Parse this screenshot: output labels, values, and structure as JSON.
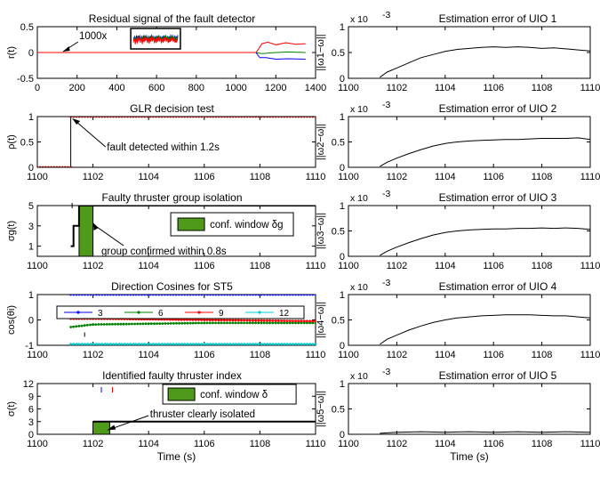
{
  "chart_data": [
    {
      "id": "L1",
      "type": "line",
      "title": "Residual signal of the fault detector",
      "ylabel": "r(t)",
      "xlabel": "",
      "xlim": [
        0,
        1400
      ],
      "ylim": [
        -0.5,
        0.5
      ],
      "xticks": [
        0,
        200,
        400,
        600,
        800,
        1000,
        1200,
        1400
      ],
      "yticks": [
        -0.5,
        0,
        0.5
      ],
      "series": [
        {
          "color": "#ff0000",
          "points": [
            [
              0,
              0
            ],
            [
              1100,
              0
            ],
            [
              1110,
              0.05
            ],
            [
              1130,
              0.17
            ],
            [
              1160,
              0.2
            ],
            [
              1200,
              0.15
            ],
            [
              1250,
              0.19
            ],
            [
              1300,
              0.16
            ],
            [
              1350,
              0.17
            ]
          ]
        },
        {
          "color": "#008000",
          "points": [
            [
              1100,
              0
            ],
            [
              1130,
              -0.02
            ],
            [
              1200,
              0.0
            ],
            [
              1260,
              0.01
            ],
            [
              1350,
              0.0
            ]
          ]
        },
        {
          "color": "#0000ff",
          "points": [
            [
              1100,
              0
            ],
            [
              1120,
              -0.1
            ],
            [
              1150,
              -0.1
            ],
            [
              1200,
              -0.13
            ],
            [
              1260,
              -0.12
            ],
            [
              1350,
              -0.13
            ]
          ]
        }
      ],
      "inset": {
        "xlim": [
          470,
          720
        ],
        "ylim": [
          -0.02,
          0.42
        ]
      },
      "annotations": [
        {
          "text": "1000x"
        }
      ]
    },
    {
      "id": "L2",
      "type": "line",
      "title": "GLR decision test",
      "ylabel": "ρ(t)",
      "xlim": [
        1100,
        1110
      ],
      "ylim": [
        0,
        1
      ],
      "xticks": [
        1100,
        1102,
        1104,
        1106,
        1108,
        1110
      ],
      "yticks": [
        0,
        0.5,
        1
      ],
      "series": [
        {
          "color": "#000000",
          "marker": "circle",
          "points": [
            [
              1100,
              0
            ],
            [
              1101.2,
              0
            ],
            [
              1101.2,
              1
            ],
            [
              1110,
              1
            ]
          ]
        }
      ],
      "annotations": [
        {
          "text": "fault detected within 1.2s"
        }
      ]
    },
    {
      "id": "L3",
      "type": "line",
      "title": "Faulty thruster group isolation",
      "ylabel": "σg(t)",
      "xlim": [
        1100,
        1110
      ],
      "ylim": [
        0,
        5
      ],
      "xticks": [
        1100,
        1102,
        1104,
        1106,
        1108,
        1110
      ],
      "yticks": [
        1,
        3,
        5
      ],
      "series": [
        {
          "color": "#000000",
          "points": [
            [
              1101.2,
              1
            ],
            [
              1101.3,
              1
            ],
            [
              1101.3,
              3
            ],
            [
              1101.5,
              3
            ],
            [
              1101.5,
              5
            ],
            [
              1110,
              5
            ]
          ]
        }
      ],
      "bars": [
        {
          "x0": 1101.5,
          "x1": 1102.0,
          "y": 5
        }
      ],
      "legend": [
        "conf. window δg"
      ],
      "annotations": [
        {
          "text": "group confirmed within 0.8s"
        }
      ]
    },
    {
      "id": "L4",
      "type": "line",
      "title": "Direction Cosines for ST5",
      "ylabel": "cos(θi)",
      "xlim": [
        1100,
        1110
      ],
      "ylim": [
        -1,
        1
      ],
      "xticks": [
        1100,
        1102,
        1104,
        1106,
        1108,
        1110
      ],
      "yticks": [
        -1,
        0,
        1
      ],
      "series": [
        {
          "name": "3",
          "color": "#0000ff",
          "marker": "circle",
          "points": [
            [
              1101.2,
              1
            ],
            [
              1110,
              1
            ]
          ]
        },
        {
          "name": "6",
          "color": "#008000",
          "marker": "circle",
          "points": [
            [
              1101.2,
              -0.28
            ],
            [
              1102,
              -0.18
            ],
            [
              1104,
              -0.15
            ],
            [
              1106,
              -0.12
            ],
            [
              1110,
              -0.12
            ]
          ]
        },
        {
          "name": "9",
          "color": "#ff0000",
          "marker": "circle",
          "points": [
            [
              1101.2,
              0.05
            ],
            [
              1102,
              0.05
            ],
            [
              1106,
              0.0
            ],
            [
              1110,
              -0.05
            ]
          ]
        },
        {
          "name": "12",
          "color": "#00cccc",
          "marker": "circle",
          "points": [
            [
              1101.2,
              -0.95
            ],
            [
              1110,
              -0.95
            ]
          ]
        }
      ],
      "legend": [
        "3",
        "6",
        "9",
        "12"
      ]
    },
    {
      "id": "L5",
      "type": "line",
      "title": "Identified faulty thruster index",
      "ylabel": "σ(t)",
      "xlabel": "Time (s)",
      "xlim": [
        1100,
        1110
      ],
      "ylim": [
        0,
        12
      ],
      "xticks": [
        1100,
        1102,
        1104,
        1106,
        1108,
        1110
      ],
      "yticks": [
        0,
        3,
        6,
        9,
        12
      ],
      "series": [
        {
          "color": "#000000",
          "points": [
            [
              1102,
              3
            ],
            [
              1110,
              3
            ]
          ]
        }
      ],
      "bars": [
        {
          "x0": 1102.0,
          "x1": 1102.6,
          "y": 3
        }
      ],
      "legend": [
        "conf. window δ"
      ],
      "annotations": [
        {
          "text": "thruster clearly isolated"
        }
      ]
    },
    {
      "id": "R1",
      "type": "line",
      "title": "Estimation error of UIO 1",
      "ylabel": "||ω1−ω||",
      "exponent": "x 10",
      "exp_power": "-3",
      "xlim": [
        1100,
        1110
      ],
      "ylim": [
        0,
        1
      ],
      "xticks": [
        1100,
        1102,
        1104,
        1106,
        1108,
        1110
      ],
      "yticks": [
        0,
        0.5,
        1
      ],
      "series": [
        {
          "color": "#000000",
          "points": [
            [
              1101.3,
              0.02
            ],
            [
              1101.6,
              0.12
            ],
            [
              1102,
              0.2
            ],
            [
              1102.5,
              0.3
            ],
            [
              1103,
              0.4
            ],
            [
              1103.5,
              0.46
            ],
            [
              1104,
              0.52
            ],
            [
              1104.5,
              0.56
            ],
            [
              1105,
              0.58
            ],
            [
              1105.5,
              0.6
            ],
            [
              1106,
              0.61
            ],
            [
              1106.5,
              0.6
            ],
            [
              1107,
              0.61
            ],
            [
              1107.5,
              0.6
            ],
            [
              1108,
              0.58
            ],
            [
              1108.5,
              0.59
            ],
            [
              1109,
              0.57
            ],
            [
              1109.5,
              0.55
            ],
            [
              1110,
              0.53
            ]
          ]
        }
      ]
    },
    {
      "id": "R2",
      "type": "line",
      "title": "Estimation error of UIO 2",
      "ylabel": "||ω2−ω||",
      "exponent": "x 10",
      "exp_power": "-3",
      "xlim": [
        1100,
        1110
      ],
      "ylim": [
        0,
        1
      ],
      "xticks": [
        1100,
        1102,
        1104,
        1106,
        1108,
        1110
      ],
      "yticks": [
        0,
        0.5,
        1
      ],
      "series": [
        {
          "color": "#000000",
          "points": [
            [
              1101.3,
              0.02
            ],
            [
              1101.6,
              0.1
            ],
            [
              1102,
              0.18
            ],
            [
              1102.5,
              0.27
            ],
            [
              1103,
              0.35
            ],
            [
              1103.5,
              0.42
            ],
            [
              1104,
              0.47
            ],
            [
              1104.5,
              0.5
            ],
            [
              1105,
              0.52
            ],
            [
              1105.5,
              0.53
            ],
            [
              1106,
              0.54
            ],
            [
              1106.5,
              0.55
            ],
            [
              1107,
              0.55
            ],
            [
              1107.5,
              0.56
            ],
            [
              1108,
              0.57
            ],
            [
              1108.5,
              0.57
            ],
            [
              1109,
              0.57
            ],
            [
              1109.5,
              0.58
            ],
            [
              1110,
              0.55
            ]
          ]
        }
      ]
    },
    {
      "id": "R3",
      "type": "line",
      "title": "Estimation error of UIO 3",
      "ylabel": "||ω3−ω||",
      "exponent": "x 10",
      "exp_power": "-3",
      "xlim": [
        1100,
        1110
      ],
      "ylim": [
        0,
        1
      ],
      "xticks": [
        1100,
        1102,
        1104,
        1106,
        1108,
        1110
      ],
      "yticks": [
        0,
        0.5,
        1
      ],
      "series": [
        {
          "color": "#000000",
          "points": [
            [
              1101.3,
              0.02
            ],
            [
              1101.6,
              0.1
            ],
            [
              1102,
              0.18
            ],
            [
              1102.5,
              0.27
            ],
            [
              1103,
              0.35
            ],
            [
              1103.5,
              0.42
            ],
            [
              1104,
              0.47
            ],
            [
              1104.5,
              0.5
            ],
            [
              1105,
              0.52
            ],
            [
              1105.5,
              0.53
            ],
            [
              1106,
              0.54
            ],
            [
              1106.5,
              0.54
            ],
            [
              1107,
              0.55
            ],
            [
              1107.5,
              0.55
            ],
            [
              1108,
              0.56
            ],
            [
              1108.5,
              0.55
            ],
            [
              1109,
              0.56
            ],
            [
              1109.5,
              0.55
            ],
            [
              1110,
              0.53
            ]
          ]
        }
      ]
    },
    {
      "id": "R4",
      "type": "line",
      "title": "Estimation error of UIO 4",
      "ylabel": "||ω4−ω||",
      "exponent": "x 10",
      "exp_power": "-3",
      "xlim": [
        1100,
        1110
      ],
      "ylim": [
        0,
        1
      ],
      "xticks": [
        1100,
        1102,
        1104,
        1106,
        1108,
        1110
      ],
      "yticks": [
        0,
        0.5,
        1
      ],
      "series": [
        {
          "color": "#000000",
          "points": [
            [
              1101.3,
              0.02
            ],
            [
              1101.6,
              0.12
            ],
            [
              1102,
              0.2
            ],
            [
              1102.5,
              0.3
            ],
            [
              1103,
              0.38
            ],
            [
              1103.5,
              0.45
            ],
            [
              1104,
              0.5
            ],
            [
              1104.5,
              0.54
            ],
            [
              1105,
              0.56
            ],
            [
              1105.5,
              0.58
            ],
            [
              1106,
              0.59
            ],
            [
              1106.5,
              0.6
            ],
            [
              1107,
              0.6
            ],
            [
              1107.5,
              0.6
            ],
            [
              1108,
              0.59
            ],
            [
              1108.5,
              0.58
            ],
            [
              1109,
              0.58
            ],
            [
              1109.5,
              0.56
            ],
            [
              1110,
              0.54
            ]
          ]
        }
      ]
    },
    {
      "id": "R5",
      "type": "line",
      "title": "Estimation error of UIO 5",
      "ylabel": "||ω5−ω||",
      "exponent": "x 10",
      "exp_power": "-3",
      "xlabel": "Time (s)",
      "xlim": [
        1100,
        1110
      ],
      "ylim": [
        0,
        1
      ],
      "xticks": [
        1100,
        1102,
        1104,
        1106,
        1108,
        1110
      ],
      "yticks": [
        0,
        0.5,
        1
      ],
      "series": [
        {
          "color": "#000000",
          "points": [
            [
              1101.3,
              0.02
            ],
            [
              1102,
              0.04
            ],
            [
              1103,
              0.05
            ],
            [
              1104,
              0.04
            ],
            [
              1105,
              0.05
            ],
            [
              1106,
              0.04
            ],
            [
              1107,
              0.05
            ],
            [
              1108,
              0.04
            ],
            [
              1109,
              0.05
            ],
            [
              1110,
              0.04
            ]
          ]
        }
      ]
    }
  ]
}
